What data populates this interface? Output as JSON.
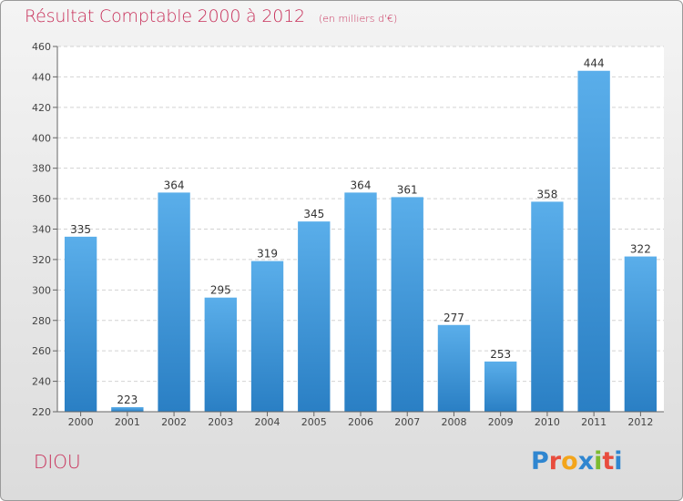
{
  "header": {
    "title": "Résultat Comptable 2000 à 2012",
    "unit": "(en milliers d'€)"
  },
  "footer": {
    "commune": "DIOU",
    "logo": {
      "letters": [
        "P",
        "r",
        "o",
        "x",
        "i",
        "t",
        "i"
      ],
      "colors": [
        "#2f86d0",
        "#e84c3d",
        "#f3a51b",
        "#2f86d0",
        "#7cbb2f",
        "#e84c3d",
        "#2f86d0"
      ]
    }
  },
  "colors": {
    "title": "#c8305a",
    "bar_top": "#5aaeea",
    "bar_bottom": "#2a7fc4"
  },
  "chart_data": {
    "type": "bar",
    "categories": [
      "2000",
      "2001",
      "2002",
      "2003",
      "2004",
      "2005",
      "2006",
      "2007",
      "2008",
      "2009",
      "2010",
      "2011",
      "2012"
    ],
    "values": [
      335,
      223,
      364,
      295,
      319,
      345,
      364,
      361,
      277,
      253,
      358,
      444,
      322
    ],
    "ylim": [
      220,
      460
    ],
    "yticks": [
      220,
      240,
      260,
      280,
      300,
      320,
      340,
      360,
      380,
      400,
      420,
      440,
      460
    ],
    "grid": true,
    "data_labels": true
  }
}
